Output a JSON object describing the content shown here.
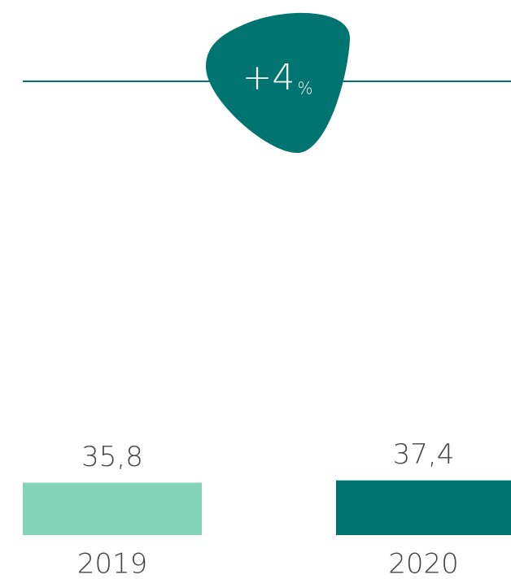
{
  "chart_data": {
    "type": "bar",
    "categories": [
      "2019",
      "2020"
    ],
    "values": [
      35.8,
      37.4
    ],
    "value_labels": [
      "35,8",
      "37,4"
    ],
    "colors": [
      "#85d3b8",
      "#007470"
    ],
    "ylim": [
      0,
      40
    ],
    "annotation": {
      "value": "+4",
      "unit": "%",
      "color": "#007470"
    }
  }
}
